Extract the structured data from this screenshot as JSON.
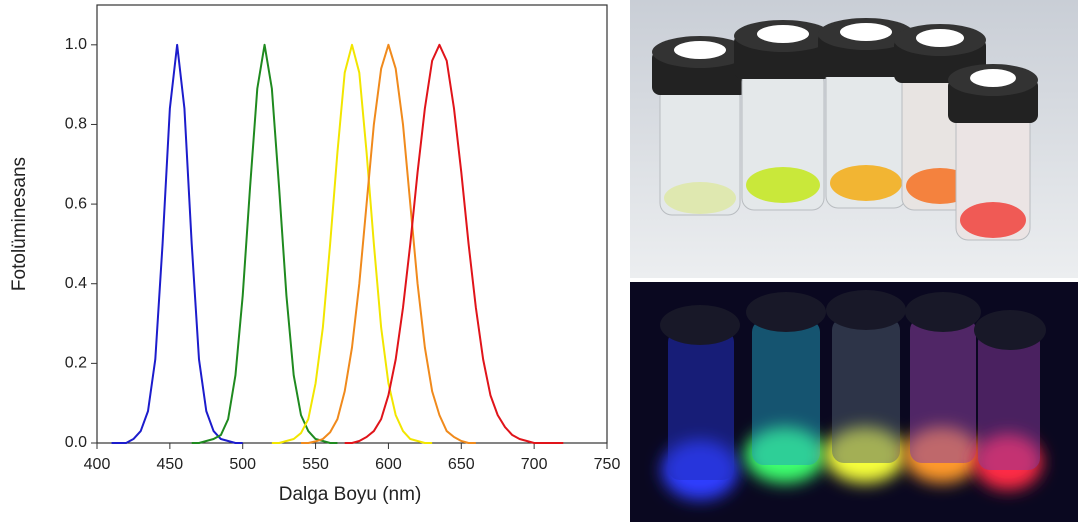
{
  "chart_data": {
    "type": "line",
    "x_label": "Dalga Boyu (nm)",
    "y_label": "Fotolüminesans",
    "xlim": [
      400,
      750
    ],
    "ylim": [
      0,
      1.1
    ],
    "xticks": [
      400,
      450,
      500,
      550,
      600,
      650,
      700,
      750
    ],
    "yticks": [
      {
        "value": 0,
        "label": "0.0"
      },
      {
        "value": 0.2,
        "label": "0.2"
      },
      {
        "value": 0.4,
        "label": "0.4"
      },
      {
        "value": 0.6,
        "label": "0.6"
      },
      {
        "value": 0.8,
        "label": "0.8"
      },
      {
        "value": 1,
        "label": "1.0"
      }
    ],
    "x": [
      410,
      415,
      420,
      425,
      430,
      435,
      440,
      445,
      450,
      455,
      460,
      465,
      470,
      475,
      480,
      485,
      490,
      495,
      500,
      505,
      510,
      515,
      520,
      525,
      530,
      535,
      540,
      545,
      550,
      555,
      560,
      565,
      570,
      575,
      580,
      585,
      590,
      595,
      600,
      605,
      610,
      615,
      620,
      625,
      630,
      635,
      640,
      645,
      650,
      655,
      660,
      665,
      670,
      675,
      680,
      685,
      690,
      695,
      700,
      705,
      710,
      715,
      720
    ],
    "series": [
      {
        "color": "#1c1ccc",
        "values": [
          0,
          0,
          0,
          0.01,
          0.03,
          0.08,
          0.21,
          0.5,
          0.84,
          1,
          0.84,
          0.5,
          0.21,
          0.08,
          0.03,
          0.01,
          0.005,
          0,
          0,
          null,
          null,
          null,
          null,
          null,
          null,
          null,
          null,
          null,
          null,
          null,
          null,
          null,
          null,
          null,
          null,
          null,
          null,
          null,
          null,
          null,
          null,
          null,
          null,
          null,
          null,
          null,
          null,
          null,
          null,
          null,
          null,
          null,
          null,
          null,
          null,
          null,
          null,
          null,
          null,
          null,
          null,
          null,
          null
        ]
      },
      {
        "color": "#1f8a1f",
        "values": [
          null,
          null,
          null,
          null,
          null,
          null,
          null,
          null,
          null,
          null,
          null,
          0,
          0,
          0.005,
          0.01,
          0.02,
          0.06,
          0.17,
          0.37,
          0.64,
          0.89,
          1,
          0.89,
          0.64,
          0.37,
          0.17,
          0.07,
          0.03,
          0.01,
          0.005,
          0,
          0,
          null,
          null,
          null,
          null,
          null,
          null,
          null,
          null,
          null,
          null,
          null,
          null,
          null,
          null,
          null,
          null,
          null,
          null,
          null,
          null,
          null,
          null,
          null,
          null,
          null,
          null,
          null,
          null,
          null,
          null,
          null
        ]
      },
      {
        "color": "#f2e600",
        "values": [
          null,
          null,
          null,
          null,
          null,
          null,
          null,
          null,
          null,
          null,
          null,
          null,
          null,
          null,
          null,
          null,
          null,
          null,
          null,
          null,
          null,
          null,
          0,
          0,
          0.005,
          0.01,
          0.025,
          0.06,
          0.15,
          0.29,
          0.5,
          0.73,
          0.93,
          1,
          0.93,
          0.73,
          0.5,
          0.29,
          0.15,
          0.07,
          0.03,
          0.01,
          0.005,
          0,
          0,
          null,
          null,
          null,
          null,
          null,
          null,
          null,
          null,
          null,
          null,
          null,
          null,
          null,
          null,
          null,
          null,
          null,
          null
        ]
      },
      {
        "color": "#f08a1c",
        "values": [
          null,
          null,
          null,
          null,
          null,
          null,
          null,
          null,
          null,
          null,
          null,
          null,
          null,
          null,
          null,
          null,
          null,
          null,
          null,
          null,
          null,
          null,
          null,
          null,
          null,
          null,
          0,
          0,
          0.004,
          0.01,
          0.027,
          0.06,
          0.13,
          0.24,
          0.4,
          0.6,
          0.8,
          0.94,
          1,
          0.94,
          0.8,
          0.6,
          0.4,
          0.24,
          0.13,
          0.07,
          0.03,
          0.015,
          0.005,
          0,
          0,
          null,
          null,
          null,
          null,
          null,
          null,
          null,
          null,
          null,
          null,
          null,
          null
        ]
      },
      {
        "color": "#e0141a",
        "values": [
          null,
          null,
          null,
          null,
          null,
          null,
          null,
          null,
          null,
          null,
          null,
          null,
          null,
          null,
          null,
          null,
          null,
          null,
          null,
          null,
          null,
          null,
          null,
          null,
          null,
          null,
          null,
          null,
          null,
          null,
          null,
          null,
          0,
          0,
          0.005,
          0.015,
          0.03,
          0.06,
          0.12,
          0.21,
          0.34,
          0.5,
          0.68,
          0.84,
          0.96,
          1,
          0.96,
          0.84,
          0.68,
          0.5,
          0.34,
          0.21,
          0.12,
          0.07,
          0.04,
          0.02,
          0.01,
          0.005,
          0,
          0,
          0,
          0,
          0
        ]
      }
    ]
  }
}
